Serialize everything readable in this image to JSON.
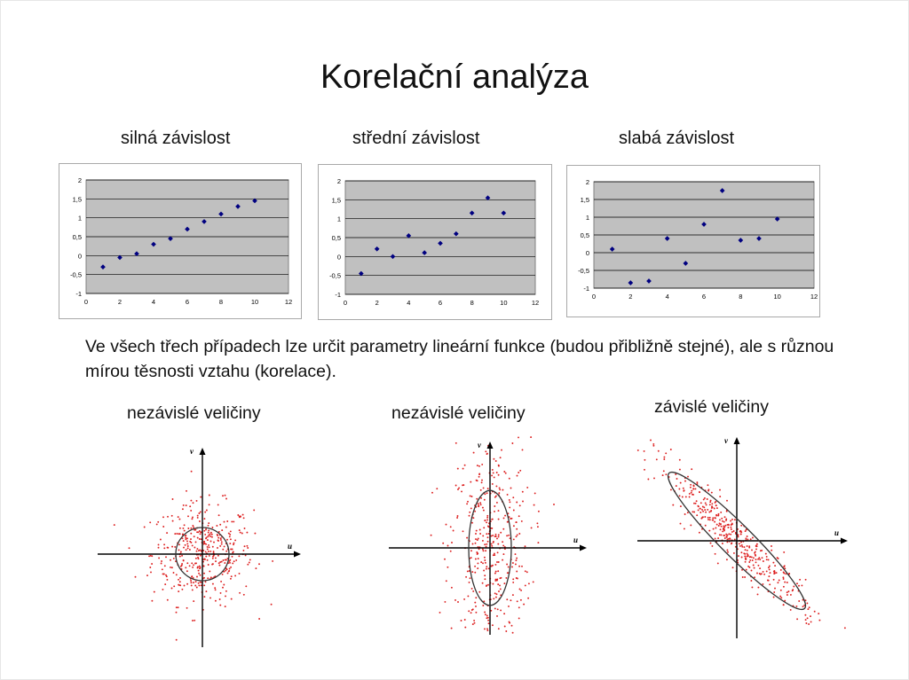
{
  "slide": {
    "title": "Korelační analýza"
  },
  "body_text": "Ve všech třech případech lze určit parametry lineární funkce (budou přibližně stejné), ale s různou mírou těsnosti vztahu (korelace).",
  "colors": {
    "plot_area": "#c0c0c0",
    "marker": "#000080",
    "gridline": "#000000",
    "dots": "#dd2020",
    "axis": "#000000"
  },
  "chart_data": [
    {
      "type": "scatter",
      "title": "silná závislost",
      "x": [
        1,
        2,
        3,
        4,
        5,
        6,
        7,
        8,
        9,
        10
      ],
      "y": [
        -0.3,
        -0.05,
        0.05,
        0.3,
        0.45,
        0.7,
        0.9,
        1.1,
        1.3,
        1.45
      ],
      "xlim": [
        0,
        12
      ],
      "ylim": [
        -1,
        2
      ],
      "xticks": [
        "0",
        "2",
        "4",
        "6",
        "8",
        "10",
        "12"
      ],
      "yticks": [
        "-1",
        "-0,5",
        "0",
        "0,5",
        "1",
        "1,5",
        "2"
      ],
      "grid": true
    },
    {
      "type": "scatter",
      "title": "střední závislost",
      "x": [
        1,
        2,
        3,
        4,
        5,
        6,
        7,
        8,
        9,
        10
      ],
      "y": [
        -0.45,
        0.2,
        0.0,
        0.55,
        0.1,
        0.35,
        0.6,
        1.15,
        1.55,
        1.15
      ],
      "xlim": [
        0,
        12
      ],
      "ylim": [
        -1,
        2
      ],
      "xticks": [
        "0",
        "2",
        "4",
        "6",
        "8",
        "10",
        "12"
      ],
      "yticks": [
        "-1",
        "-0,5",
        "0",
        "0,5",
        "1",
        "1,5",
        "2"
      ],
      "grid": true
    },
    {
      "type": "scatter",
      "title": "slabá závislost",
      "x": [
        1,
        2,
        3,
        4,
        5,
        6,
        7,
        8,
        9,
        10
      ],
      "y": [
        0.1,
        -0.85,
        -0.8,
        0.4,
        -0.3,
        0.8,
        1.75,
        0.35,
        0.4,
        0.95
      ],
      "xlim": [
        0,
        12
      ],
      "ylim": [
        -1,
        2
      ],
      "xticks": [
        "0",
        "2",
        "4",
        "6",
        "8",
        "10",
        "12"
      ],
      "yticks": [
        "-1",
        "-0,5",
        "0",
        "0,5",
        "1",
        "1,5",
        "2"
      ],
      "grid": true
    },
    {
      "type": "scatter",
      "title": "nezávislé veličiny",
      "xlabel": "u",
      "ylabel": "v",
      "n_points": 420,
      "spread_x": 1.0,
      "spread_y": 1.0,
      "correlation": 0.0,
      "ellipse": {
        "rx": 1.0,
        "ry": 1.0,
        "angle_deg": 0
      }
    },
    {
      "type": "scatter",
      "title": "nezávislé veličiny",
      "xlabel": "u",
      "ylabel": "v",
      "n_points": 420,
      "spread_x": 1.0,
      "spread_y": 2.7,
      "correlation": 0.0,
      "ellipse": {
        "rx": 1.0,
        "ry": 2.7,
        "angle_deg": 0
      }
    },
    {
      "type": "scatter",
      "title": "závislé veličiny",
      "xlabel": "u",
      "ylabel": "v",
      "n_points": 420,
      "spread_x": 1.0,
      "spread_y": 1.0,
      "correlation": -0.95,
      "ellipse": {
        "rx": 3.6,
        "ry": 0.6,
        "angle_deg": 45
      }
    }
  ]
}
